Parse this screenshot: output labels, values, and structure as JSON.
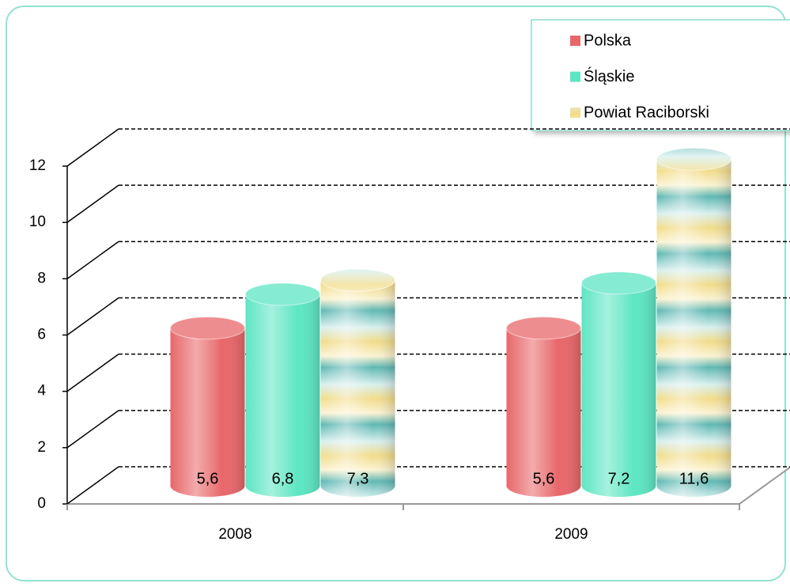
{
  "chart_data": {
    "type": "bar3d",
    "categories": [
      "2008",
      "2009"
    ],
    "series": [
      {
        "name": "Polska",
        "color": "#e8676a",
        "values": [
          5.6,
          5.6
        ],
        "value_labels": [
          "5,6",
          "5,6"
        ]
      },
      {
        "name": "Śląskie",
        "color": "#5de6c2",
        "values": [
          6.8,
          7.2
        ],
        "value_labels": [
          "6,8",
          "7,2"
        ]
      },
      {
        "name": "Powiat Raciborski",
        "color": "#6fc2bc",
        "values": [
          7.3,
          11.6
        ],
        "value_labels": [
          "7,3",
          "11,6"
        ]
      }
    ],
    "ylim": [
      0,
      12
    ],
    "yticks": [
      0,
      2,
      4,
      6,
      8,
      10,
      12
    ],
    "grid": true,
    "legend": "top-right"
  }
}
